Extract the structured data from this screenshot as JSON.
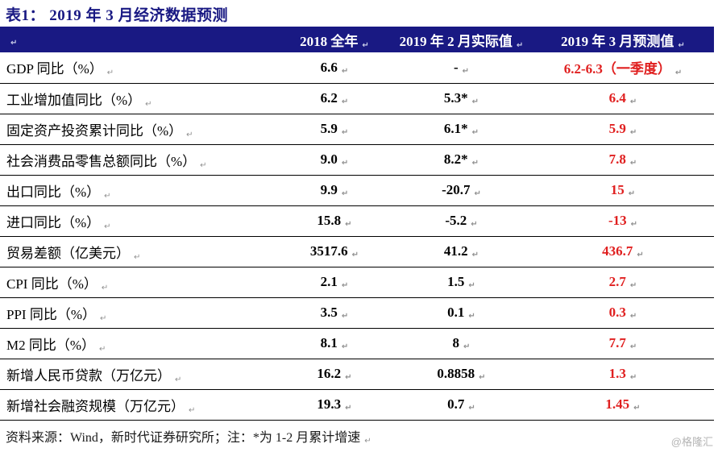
{
  "title": "表1： 2019 年 3 月经济数据预测",
  "marks": {
    "paragraph_mark": "↵"
  },
  "colors": {
    "header_bg": "#191983",
    "title_text": "#191983",
    "forecast_red": "#e02020",
    "row_border": "#000000",
    "pilcrow_gray": "#909090",
    "watermark_gray": "#b4b4b4"
  },
  "table": {
    "columns": [
      "",
      "2018 全年",
      "2019 年 2 月实际值",
      "2019 年 3 月预测值"
    ],
    "rows": [
      {
        "label": "GDP 同比（%）",
        "y2018": "6.6",
        "feb2019": "-",
        "mar2019_forecast": "6.2-6.3（一季度）"
      },
      {
        "label": "工业增加值同比（%）",
        "y2018": "6.2",
        "feb2019": "5.3*",
        "mar2019_forecast": "6.4"
      },
      {
        "label": "固定资产投资累计同比（%）",
        "y2018": "5.9",
        "feb2019": "6.1*",
        "mar2019_forecast": "5.9"
      },
      {
        "label": "社会消费品零售总额同比（%）",
        "y2018": "9.0",
        "feb2019": "8.2*",
        "mar2019_forecast": "7.8"
      },
      {
        "label": "出口同比（%）",
        "y2018": "9.9",
        "feb2019": "-20.7",
        "mar2019_forecast": "15"
      },
      {
        "label": "进口同比（%）",
        "y2018": "15.8",
        "feb2019": "-5.2",
        "mar2019_forecast": "-13"
      },
      {
        "label": "贸易差额（亿美元）",
        "y2018": "3517.6",
        "feb2019": "41.2",
        "mar2019_forecast": "436.7"
      },
      {
        "label": "CPI 同比（%）",
        "y2018": "2.1",
        "feb2019": "1.5",
        "mar2019_forecast": "2.7"
      },
      {
        "label": "PPI 同比（%）",
        "y2018": "3.5",
        "feb2019": "0.1",
        "mar2019_forecast": "0.3"
      },
      {
        "label": "M2 同比（%）",
        "y2018": "8.1",
        "feb2019": "8",
        "mar2019_forecast": "7.7"
      },
      {
        "label": "新增人民币贷款（万亿元）",
        "y2018": "16.2",
        "feb2019": "0.8858",
        "mar2019_forecast": "1.3"
      },
      {
        "label": "新增社会融资规模（万亿元）",
        "y2018": "19.3",
        "feb2019": "0.7",
        "mar2019_forecast": "1.45"
      }
    ]
  },
  "footer": "资料来源：Wind，新时代证券研究所；注：*为 1-2 月累计增速",
  "watermark": "@格隆汇"
}
